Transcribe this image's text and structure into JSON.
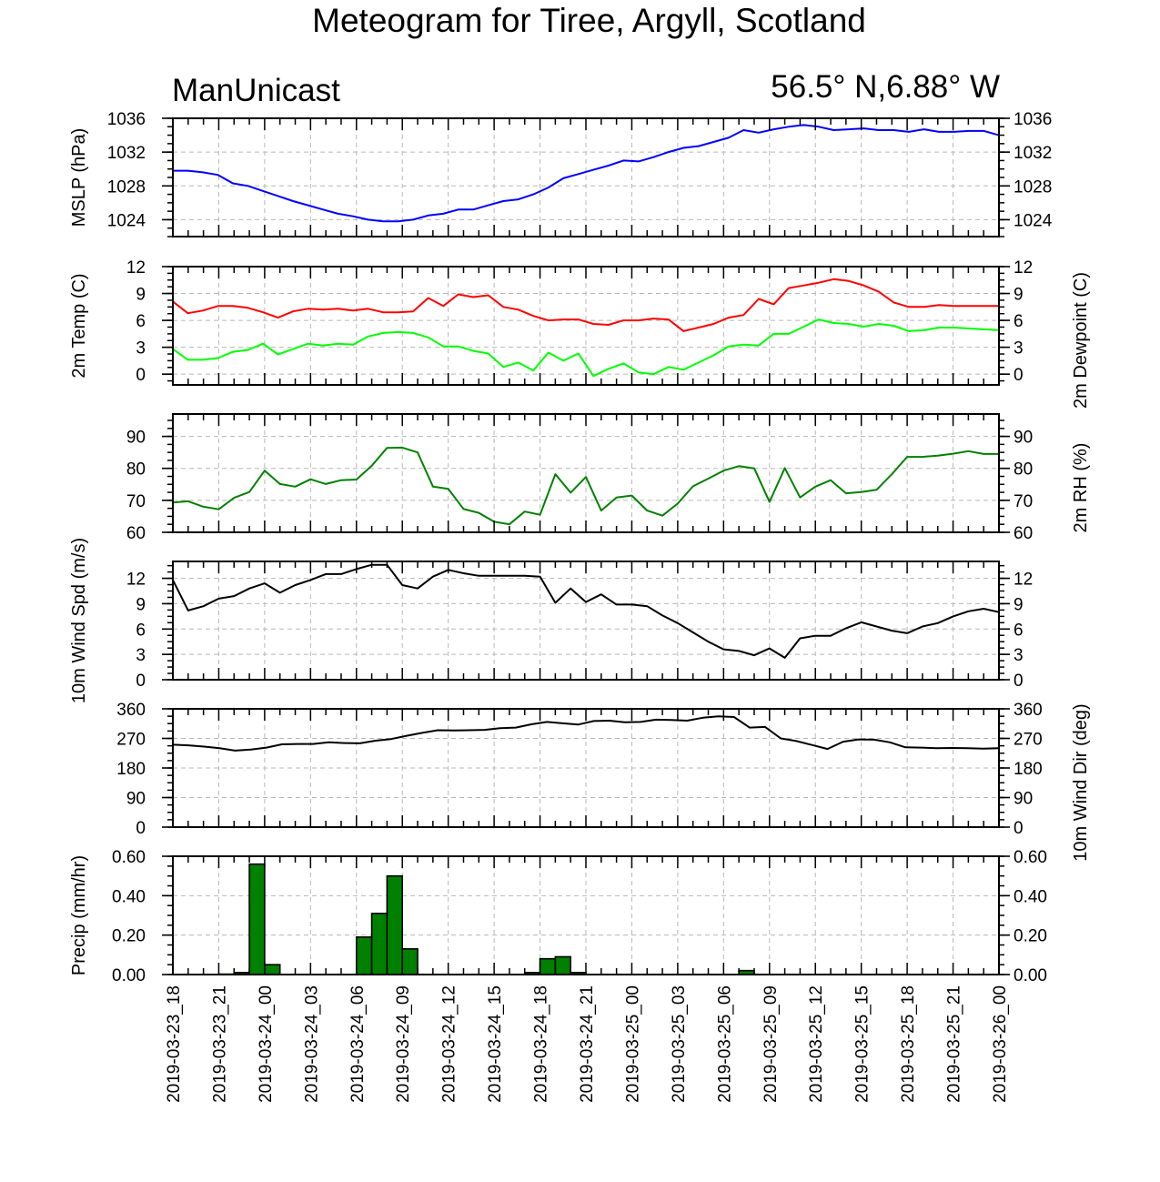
{
  "header": {
    "title": "Meteogram for Tiree, Argyll, Scotland",
    "model": "ManUnicast",
    "coords": "56.5° N,6.88° W"
  },
  "time_axis": {
    "tick_labels": [
      "2019-03-23_18",
      "2019-03-23_21",
      "2019-03-24_00",
      "2019-03-24_03",
      "2019-03-24_06",
      "2019-03-24_09",
      "2019-03-24_12",
      "2019-03-24_15",
      "2019-03-24_18",
      "2019-03-24_21",
      "2019-03-25_00",
      "2019-03-25_03",
      "2019-03-25_06",
      "2019-03-25_09",
      "2019-03-25_12",
      "2019-03-25_15",
      "2019-03-25_18",
      "2019-03-25_21",
      "2019-03-26_00"
    ],
    "hours_per_tick": 3
  },
  "chart_data": [
    {
      "type": "line",
      "id": "mslp",
      "ylabel": "MSLP (hPa)",
      "ylim": [
        1022,
        1036
      ],
      "yticks": [
        1024,
        1028,
        1032,
        1036
      ],
      "grid": true,
      "series": [
        {
          "color": "#0000ff",
          "values": [
            1029.8,
            1029.8,
            1029.6,
            1029.3,
            1028.3,
            1028.0,
            1027.4,
            1026.8,
            1026.2,
            1025.7,
            1025.2,
            1024.7,
            1024.4,
            1024.0,
            1023.8,
            1023.8,
            1024.0,
            1024.5,
            1024.7,
            1025.2,
            1025.2,
            1025.7,
            1026.2,
            1026.4,
            1027.0,
            1027.8,
            1028.9,
            1029.4,
            1029.9,
            1030.4,
            1031.0,
            1030.9,
            1031.4,
            1032.0,
            1032.5,
            1032.7,
            1033.2,
            1033.7,
            1034.6,
            1034.3,
            1034.7,
            1035.0,
            1035.2,
            1035.0,
            1034.6,
            1034.7,
            1034.8,
            1034.6,
            1034.6,
            1034.4,
            1034.7,
            1034.4,
            1034.4,
            1034.5,
            1034.5,
            1034.0
          ]
        }
      ]
    },
    {
      "type": "line",
      "id": "temp",
      "ylabel": "2m Temp (C)",
      "ylabel_right": "2m Dewpoint (C)",
      "ylim": [
        -1.2,
        12
      ],
      "yticks": [
        0,
        3,
        6,
        9,
        12
      ],
      "grid": true,
      "series": [
        {
          "color": "#ff0000",
          "values": [
            8.1,
            6.8,
            7.1,
            7.6,
            7.6,
            7.4,
            6.9,
            6.3,
            7.0,
            7.3,
            7.2,
            7.3,
            7.1,
            7.3,
            6.9,
            6.9,
            7.0,
            8.5,
            7.6,
            8.9,
            8.6,
            8.8,
            7.5,
            7.2,
            6.5,
            6.0,
            6.1,
            6.1,
            5.6,
            5.5,
            6.0,
            6.0,
            6.2,
            6.1,
            4.8,
            5.2,
            5.6,
            6.3,
            6.6,
            8.4,
            7.8,
            9.6,
            9.9,
            10.2,
            10.6,
            10.4,
            9.9,
            9.2,
            8.0,
            7.5,
            7.5,
            7.7,
            7.6,
            7.6,
            7.6,
            7.6
          ]
        },
        {
          "color": "#00ff00",
          "values": [
            2.8,
            1.6,
            1.6,
            1.8,
            2.5,
            2.7,
            3.4,
            2.2,
            2.8,
            3.4,
            3.2,
            3.4,
            3.3,
            4.2,
            4.6,
            4.7,
            4.6,
            4.1,
            3.1,
            3.1,
            2.6,
            2.3,
            0.8,
            1.3,
            0.4,
            2.4,
            1.5,
            2.3,
            -0.2,
            0.6,
            1.2,
            0.2,
            0.0,
            0.8,
            0.5,
            1.3,
            2.1,
            3.1,
            3.3,
            3.2,
            4.5,
            4.5,
            5.3,
            6.1,
            5.7,
            5.6,
            5.3,
            5.6,
            5.4,
            4.8,
            4.9,
            5.2,
            5.2,
            5.1,
            5.0,
            4.9
          ]
        }
      ]
    },
    {
      "type": "line",
      "id": "rh",
      "ylabel_right": "2m RH (%)",
      "ylim": [
        60,
        97
      ],
      "yticks": [
        60,
        70,
        80,
        90
      ],
      "grid": true,
      "series": [
        {
          "color": "#008000",
          "values": [
            69.3,
            69.7,
            68,
            67.2,
            70.8,
            72.6,
            79.3,
            75.1,
            74.3,
            76.6,
            75.1,
            76.3,
            76.5,
            80.8,
            86.4,
            86.5,
            85,
            74.3,
            73.6,
            67.3,
            66.1,
            63.3,
            62.5,
            66.5,
            65.5,
            78.2,
            72.4,
            77.3,
            66.8,
            70.9,
            71.5,
            66.8,
            65.2,
            69,
            74.4,
            76.8,
            79.3,
            80.7,
            80,
            69.5,
            80.1,
            70.9,
            74.3,
            76.3,
            72.2,
            72.6,
            73.3,
            78.2,
            83.6,
            83.6,
            84,
            84.6,
            85.4,
            84.5,
            84.5
          ]
        }
      ]
    },
    {
      "type": "line",
      "id": "wind_speed",
      "ylabel": "10m Wind Spd (m/s)",
      "ylim": [
        0,
        14
      ],
      "yticks": [
        0,
        3,
        6,
        9,
        12
      ],
      "grid": true,
      "series": [
        {
          "color": "#000000",
          "values": [
            11.8,
            8.2,
            8.7,
            9.6,
            9.9,
            10.8,
            11.4,
            10.3,
            11.2,
            11.8,
            12.5,
            12.5,
            13.1,
            13.6,
            13.6,
            11.2,
            10.8,
            12.2,
            13,
            12.6,
            12.3,
            12.3,
            12.3,
            12.3,
            12.2,
            9.1,
            10.8,
            9.2,
            10.1,
            8.9,
            8.9,
            8.7,
            7.6,
            6.7,
            5.6,
            4.5,
            3.6,
            3.4,
            2.9,
            3.7,
            2.6,
            4.9,
            5.2,
            5.2,
            6.1,
            6.8,
            6.3,
            5.8,
            5.5,
            6.3,
            6.7,
            7.5,
            8.1,
            8.4,
            8
          ]
        }
      ]
    },
    {
      "type": "line",
      "id": "wind_dir",
      "ylabel_right": "10m Wind Dir (deg)",
      "ylim": [
        0,
        360
      ],
      "yticks": [
        0,
        90,
        180,
        270,
        360
      ],
      "grid": true,
      "series": [
        {
          "color": "#000000",
          "values": [
            251,
            249,
            245,
            240,
            233,
            236,
            242,
            252,
            253,
            253,
            258,
            256,
            255,
            263,
            268,
            278,
            287,
            295,
            294,
            295,
            296,
            301,
            303,
            313,
            320,
            316,
            312,
            323,
            324,
            319,
            320,
            327,
            326,
            324,
            333,
            337,
            335,
            303,
            305,
            270,
            262,
            250,
            238,
            260,
            267,
            266,
            258,
            243,
            242,
            240,
            241,
            240,
            239,
            240
          ]
        }
      ]
    },
    {
      "type": "bar",
      "id": "precip",
      "ylabel": "Precip (mm/hr)",
      "ylim": [
        0,
        0.6
      ],
      "yticks": [
        0.0,
        0.2,
        0.4,
        0.6
      ],
      "ytick_labels": [
        "0.00",
        "0.20",
        "0.40",
        "0.60"
      ],
      "grid": true,
      "bar_color": "#008000",
      "hours": [
        0,
        1,
        2,
        3,
        4,
        5,
        6,
        7,
        8,
        9,
        10,
        11,
        12,
        13,
        14,
        15,
        16,
        17,
        18,
        19,
        20,
        21,
        22,
        23,
        24,
        25,
        26,
        27,
        28,
        29,
        30,
        31,
        32,
        33,
        34,
        35,
        36,
        37,
        38,
        39,
        40,
        41,
        42,
        43,
        44,
        45,
        46,
        47,
        48,
        49,
        50,
        51,
        52,
        53
      ],
      "values": [
        0,
        0,
        0,
        0.002,
        0.01,
        0.56,
        0.05,
        0,
        0,
        0,
        0,
        0,
        0.19,
        0.31,
        0.5,
        0.13,
        0,
        0,
        0,
        0,
        0,
        0,
        0,
        0.01,
        0.08,
        0.09,
        0.01,
        0,
        0,
        0,
        0,
        0,
        0,
        0,
        0,
        0,
        0,
        0.02,
        0,
        0,
        0,
        0,
        0,
        0,
        0,
        0,
        0,
        0,
        0,
        0,
        0,
        0,
        0,
        0
      ]
    }
  ]
}
